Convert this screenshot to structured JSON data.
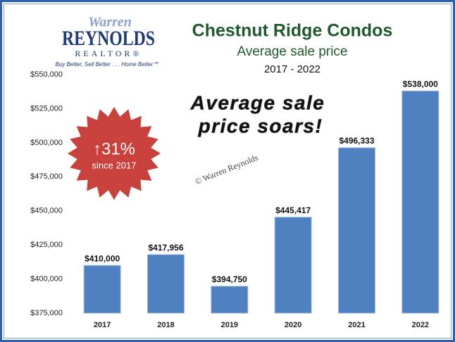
{
  "logo": {
    "name": "Warren",
    "brand": "REYNOLDS",
    "role": "REALTOR®",
    "tagline": "Buy Better, Sell Better . . . Home Better℠"
  },
  "chart_data": {
    "type": "bar",
    "title": "Chestnut Ridge Condos",
    "subtitle": "Average sale price",
    "period": "2017 - 2022",
    "categories": [
      "2017",
      "2018",
      "2019",
      "2020",
      "2021",
      "2022"
    ],
    "values": [
      410000,
      417956,
      394750,
      445417,
      496333,
      538000
    ],
    "value_labels": [
      "$410,000",
      "$417,956",
      "$394,750",
      "$445,417",
      "$496,333",
      "$538,000"
    ],
    "color": "#4f80c0",
    "ylim": [
      375000,
      550000
    ],
    "yticks": [
      {
        "value": 375000,
        "label": "$375,000"
      },
      {
        "value": 400000,
        "label": "$400,000"
      },
      {
        "value": 425000,
        "label": "$425,000"
      },
      {
        "value": 450000,
        "label": "$450,000"
      },
      {
        "value": 475000,
        "label": "$475,000"
      },
      {
        "value": 500000,
        "label": "$500,000"
      },
      {
        "value": 525000,
        "label": "$525,000"
      },
      {
        "value": 550000,
        "label": "$550,000"
      }
    ],
    "grid": false,
    "headline": [
      "Average sale",
      "price soars!"
    ],
    "badge": {
      "change": "↑31%",
      "note": "since 2017"
    },
    "watermark": "© Warren Reynolds"
  }
}
